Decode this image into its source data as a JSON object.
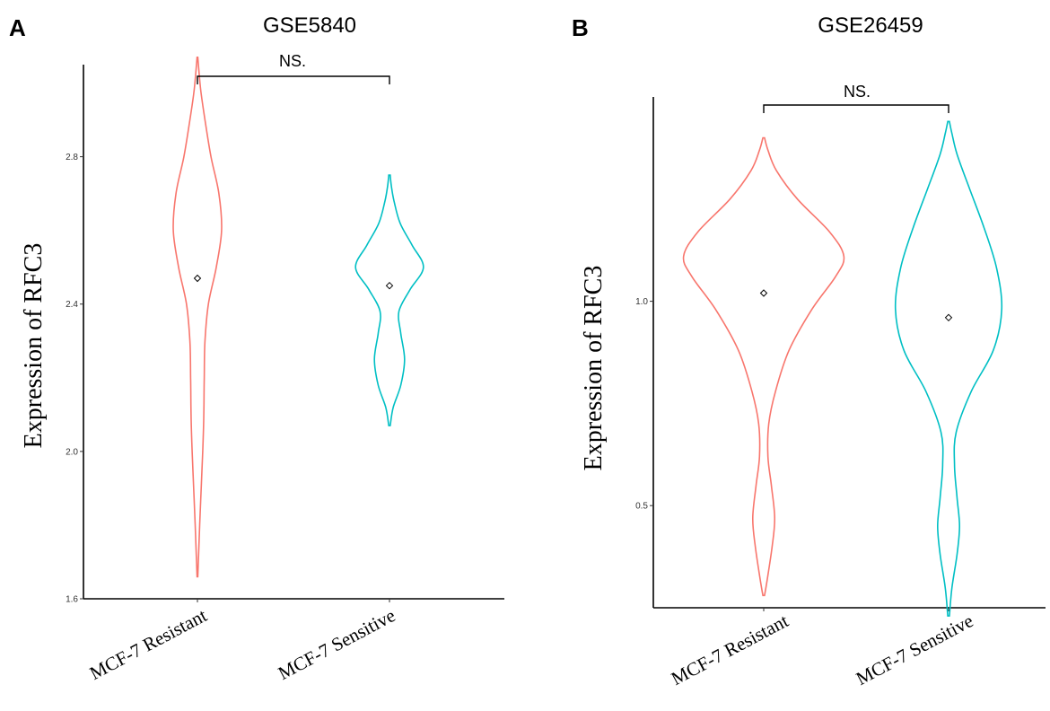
{
  "chart_data": [
    {
      "type": "violin",
      "panel": "A",
      "title": "GSE5840",
      "ylabel": "Expression of RFC3",
      "xlabel": "",
      "ylim": [
        1.6,
        3.05
      ],
      "yticks": [
        "1.6",
        "2.0",
        "2.4",
        "2.8"
      ],
      "categories": [
        "MCF-7 Resistant",
        "MCF-7 Sensitive"
      ],
      "colors": [
        "#F8766D",
        "#00BFC4"
      ],
      "significance": "NS.",
      "series": [
        {
          "name": "MCF-7 Resistant",
          "color": "#F8766D",
          "mean": 2.47,
          "range": [
            1.66,
            3.07
          ],
          "density": [
            [
              1.66,
              0.01
            ],
            [
              1.72,
              0.03
            ],
            [
              1.8,
              0.06
            ],
            [
              1.9,
              0.1
            ],
            [
              2.0,
              0.14
            ],
            [
              2.1,
              0.17
            ],
            [
              2.2,
              0.18
            ],
            [
              2.3,
              0.2
            ],
            [
              2.4,
              0.29
            ],
            [
              2.5,
              0.5
            ],
            [
              2.6,
              0.64
            ],
            [
              2.7,
              0.57
            ],
            [
              2.8,
              0.36
            ],
            [
              2.9,
              0.2
            ],
            [
              2.97,
              0.1
            ],
            [
              3.02,
              0.05
            ],
            [
              3.07,
              0.01
            ]
          ]
        },
        {
          "name": "MCF-7 Sensitive",
          "color": "#00BFC4",
          "mean": 2.45,
          "range": [
            2.07,
            2.75
          ],
          "density": [
            [
              2.07,
              0.02
            ],
            [
              2.12,
              0.1
            ],
            [
              2.18,
              0.3
            ],
            [
              2.25,
              0.4
            ],
            [
              2.32,
              0.3
            ],
            [
              2.38,
              0.25
            ],
            [
              2.44,
              0.55
            ],
            [
              2.5,
              0.9
            ],
            [
              2.56,
              0.6
            ],
            [
              2.62,
              0.28
            ],
            [
              2.68,
              0.12
            ],
            [
              2.72,
              0.05
            ],
            [
              2.75,
              0.02
            ]
          ]
        }
      ]
    },
    {
      "type": "violin",
      "panel": "B",
      "title": "GSE26459",
      "ylabel": "Expression of RFC3",
      "xlabel": "",
      "ylim": [
        0.25,
        1.5
      ],
      "yticks": [
        "0.5",
        "1.0"
      ],
      "categories": [
        "MCF-7 Resistant",
        "MCF-7 Sensitive"
      ],
      "colors": [
        "#F8766D",
        "#00BFC4"
      ],
      "significance": "NS.",
      "series": [
        {
          "name": "MCF-7 Resistant",
          "color": "#F8766D",
          "mean": 1.02,
          "range": [
            0.28,
            1.4
          ],
          "density": [
            [
              0.28,
              0.01
            ],
            [
              0.33,
              0.05
            ],
            [
              0.4,
              0.1
            ],
            [
              0.47,
              0.13
            ],
            [
              0.55,
              0.09
            ],
            [
              0.62,
              0.05
            ],
            [
              0.7,
              0.06
            ],
            [
              0.78,
              0.14
            ],
            [
              0.88,
              0.3
            ],
            [
              0.98,
              0.57
            ],
            [
              1.06,
              0.85
            ],
            [
              1.11,
              0.95
            ],
            [
              1.17,
              0.78
            ],
            [
              1.25,
              0.4
            ],
            [
              1.32,
              0.15
            ],
            [
              1.37,
              0.05
            ],
            [
              1.4,
              0.01
            ]
          ]
        },
        {
          "name": "MCF-7 Sensitive",
          "color": "#00BFC4",
          "mean": 0.96,
          "range": [
            0.23,
            1.44
          ],
          "density": [
            [
              0.23,
              0.01
            ],
            [
              0.3,
              0.04
            ],
            [
              0.38,
              0.1
            ],
            [
              0.45,
              0.13
            ],
            [
              0.52,
              0.1
            ],
            [
              0.6,
              0.07
            ],
            [
              0.68,
              0.09
            ],
            [
              0.78,
              0.27
            ],
            [
              0.88,
              0.53
            ],
            [
              0.98,
              0.63
            ],
            [
              1.08,
              0.57
            ],
            [
              1.18,
              0.42
            ],
            [
              1.28,
              0.24
            ],
            [
              1.36,
              0.1
            ],
            [
              1.41,
              0.04
            ],
            [
              1.44,
              0.01
            ]
          ]
        }
      ]
    }
  ]
}
